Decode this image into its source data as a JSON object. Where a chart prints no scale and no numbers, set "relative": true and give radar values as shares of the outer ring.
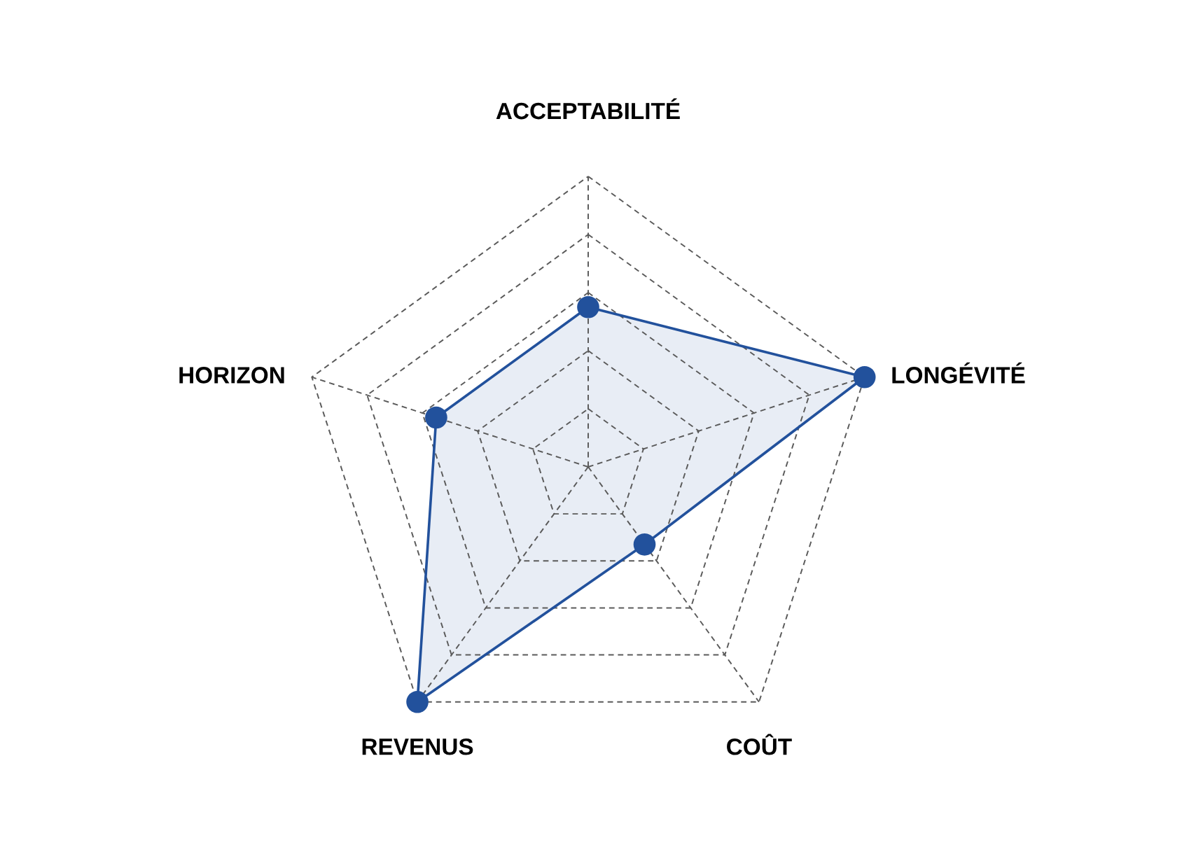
{
  "chart_data": {
    "type": "radar",
    "categories": [
      "ACCEPTABILITÉ",
      "LONGÉVITÉ",
      "COÛT",
      "REVENUS",
      "HORIZON"
    ],
    "relative": true,
    "series": [
      {
        "color": "#22519c",
        "values": [
          0.55,
          1,
          0.33,
          1,
          0.55
        ]
      }
    ],
    "grid": true,
    "marker": "circle",
    "line_style": "solid"
  }
}
